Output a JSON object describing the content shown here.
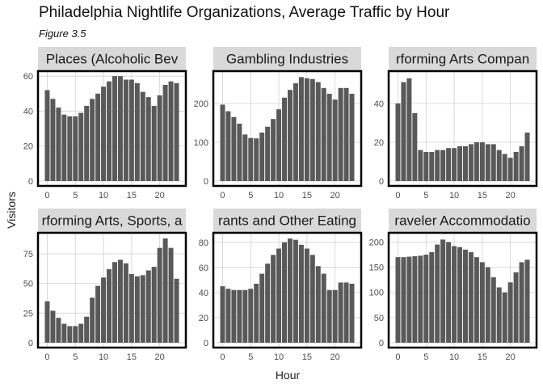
{
  "title": "Philadelphia Nightlife Organizations, Average Traffic by Hour",
  "subtitle": "Figure 3.5",
  "xlabel": "Hour",
  "ylabel": "Visitors",
  "bar_color": "#595959",
  "strip_color": "#d9d9d9",
  "grid_color": "#d0d0d0",
  "border_color": "#000000",
  "chart_data": [
    {
      "type": "bar",
      "facet": "Drinking Places (Alcoholic Beverages)",
      "strip_label": "Places (Alcoholic Bev",
      "x": [
        0,
        1,
        2,
        3,
        4,
        5,
        6,
        7,
        8,
        9,
        10,
        11,
        12,
        13,
        14,
        15,
        16,
        17,
        18,
        19,
        20,
        21,
        22,
        23
      ],
      "values": [
        52,
        47,
        42,
        38,
        37,
        37,
        39,
        43,
        47,
        50,
        54,
        57,
        60,
        60,
        58,
        58,
        56,
        51,
        48,
        43,
        49,
        55,
        57,
        56
      ],
      "ylim": [
        0,
        61
      ],
      "yticks": [
        0,
        20,
        40,
        60
      ],
      "xticks": [
        0,
        5,
        10,
        15,
        20
      ]
    },
    {
      "type": "bar",
      "facet": "Gambling Industries",
      "strip_label": "Gambling Industries",
      "x": [
        0,
        1,
        2,
        3,
        4,
        5,
        6,
        7,
        8,
        9,
        10,
        11,
        12,
        13,
        14,
        15,
        16,
        17,
        18,
        19,
        20,
        21,
        22,
        23
      ],
      "values": [
        197,
        180,
        165,
        148,
        120,
        111,
        110,
        125,
        140,
        160,
        185,
        215,
        235,
        252,
        268,
        265,
        263,
        255,
        240,
        225,
        210,
        240,
        240,
        225
      ],
      "ylim": [
        0,
        275
      ],
      "yticks": [
        0,
        100,
        200
      ],
      "xticks": [
        0,
        5,
        10,
        15,
        20
      ]
    },
    {
      "type": "bar",
      "facet": "Performing Arts Companies",
      "strip_label": "rforming Arts Compan",
      "x": [
        0,
        1,
        2,
        3,
        4,
        5,
        6,
        7,
        8,
        9,
        10,
        11,
        12,
        13,
        14,
        15,
        16,
        17,
        18,
        19,
        20,
        21,
        22,
        23
      ],
      "values": [
        40,
        51,
        53,
        35,
        16,
        15,
        15,
        16,
        16,
        17,
        17,
        18,
        18,
        19,
        20,
        20,
        19,
        19,
        16,
        14,
        12,
        15,
        18,
        25
      ],
      "ylim": [
        0,
        55
      ],
      "yticks": [
        0,
        20,
        40
      ],
      "xticks": [
        0,
        5,
        10,
        15,
        20
      ]
    },
    {
      "type": "bar",
      "facet": "Performing Arts, Spectator Sports, and Related Industries",
      "strip_label": "rforming Arts, Sports, a",
      "x": [
        0,
        1,
        2,
        3,
        4,
        5,
        6,
        7,
        8,
        9,
        10,
        11,
        12,
        13,
        14,
        15,
        16,
        17,
        18,
        19,
        20,
        21,
        22,
        23
      ],
      "values": [
        35,
        27,
        21,
        16,
        14,
        14,
        16,
        22,
        38,
        48,
        55,
        62,
        68,
        70,
        67,
        58,
        56,
        57,
        61,
        64,
        80,
        88,
        80,
        54
      ],
      "ylim": [
        0,
        90
      ],
      "yticks": [
        0,
        25,
        50,
        75
      ],
      "xticks": [
        0,
        5,
        10,
        15,
        20
      ]
    },
    {
      "type": "bar",
      "facet": "Restaurants and Other Eating Places",
      "strip_label": "rants and Other Eating",
      "x": [
        0,
        1,
        2,
        3,
        4,
        5,
        6,
        7,
        8,
        9,
        10,
        11,
        12,
        13,
        14,
        15,
        16,
        17,
        18,
        19,
        20,
        21,
        22,
        23
      ],
      "values": [
        45,
        43,
        42,
        42,
        42,
        43,
        47,
        55,
        63,
        70,
        75,
        80,
        83,
        82,
        78,
        75,
        70,
        61,
        55,
        42,
        42,
        48,
        48,
        47
      ],
      "ylim": [
        0,
        85
      ],
      "yticks": [
        0,
        20,
        40,
        60,
        80
      ],
      "xticks": [
        0,
        5,
        10,
        15,
        20
      ]
    },
    {
      "type": "bar",
      "facet": "Traveler Accommodation",
      "strip_label": "raveler Accommodatio",
      "x": [
        0,
        1,
        2,
        3,
        4,
        5,
        6,
        7,
        8,
        9,
        10,
        11,
        12,
        13,
        14,
        15,
        16,
        17,
        18,
        19,
        20,
        21,
        22,
        23
      ],
      "values": [
        170,
        170,
        171,
        172,
        173,
        175,
        180,
        195,
        205,
        200,
        192,
        190,
        185,
        180,
        170,
        160,
        150,
        130,
        110,
        100,
        120,
        140,
        160,
        165
      ],
      "ylim": [
        0,
        212
      ],
      "yticks": [
        0,
        50,
        100,
        150,
        200
      ],
      "xticks": [
        0,
        5,
        10,
        15,
        20
      ]
    }
  ]
}
